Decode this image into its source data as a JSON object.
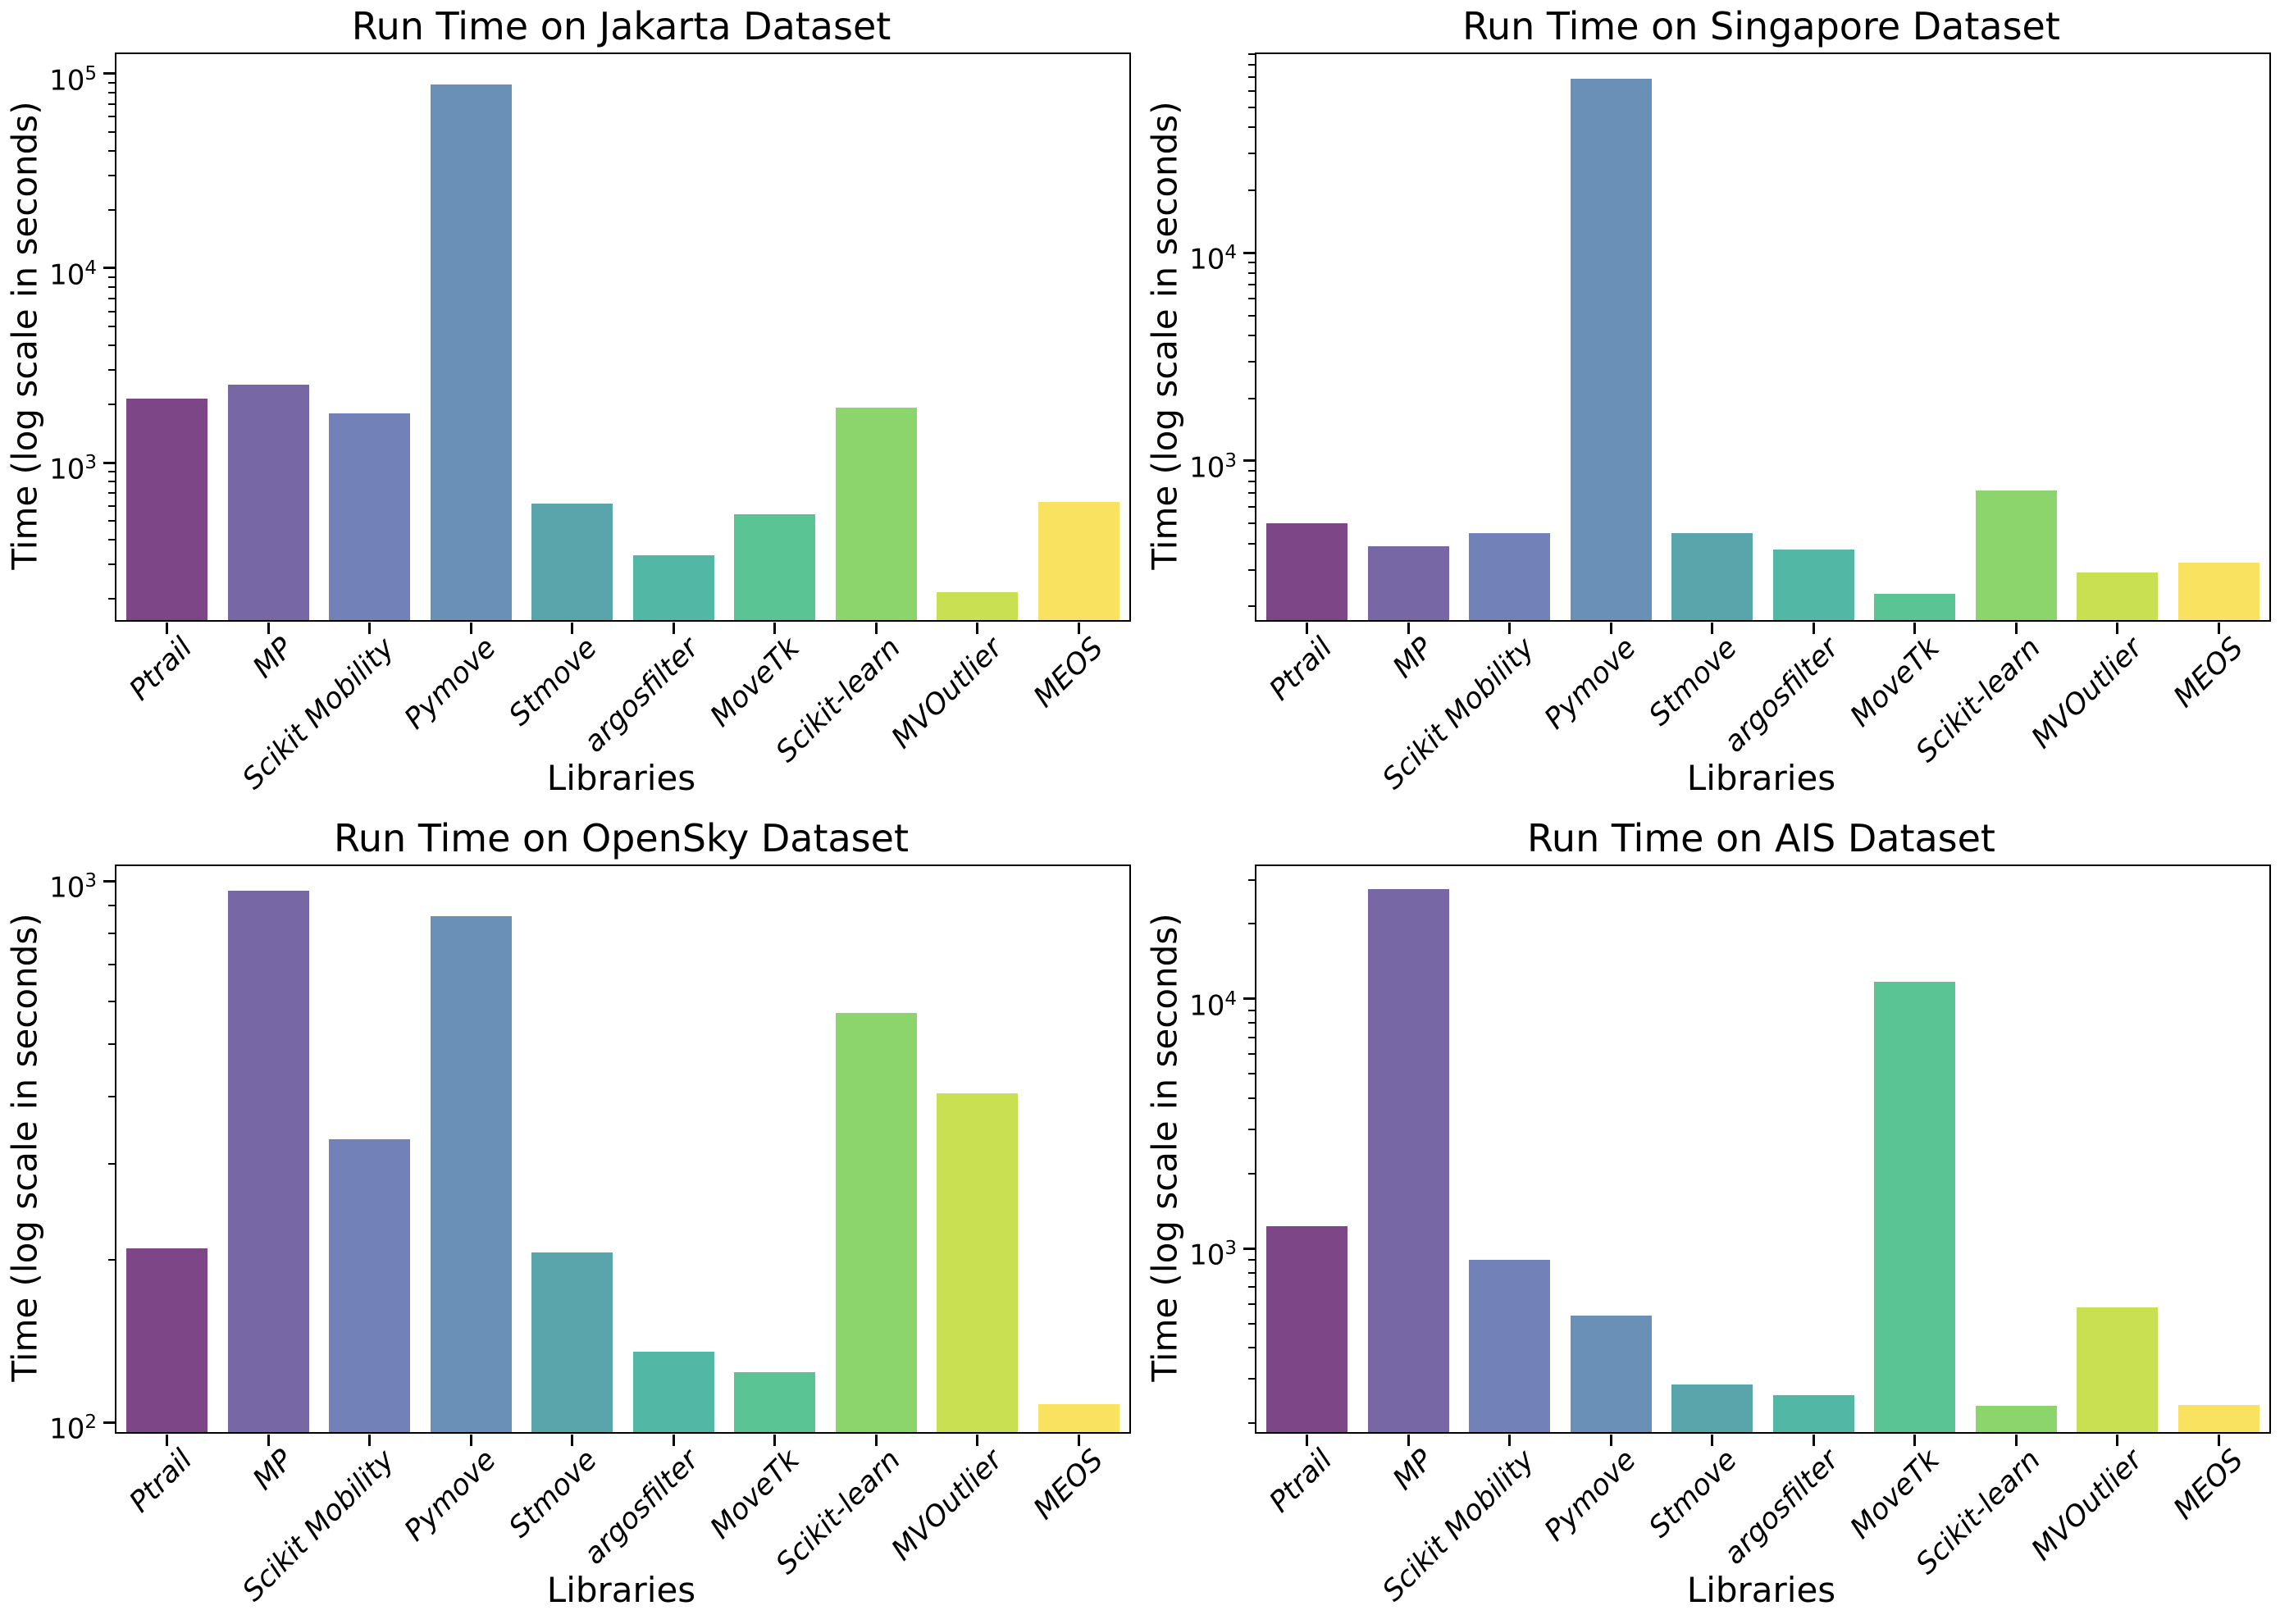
{
  "chart_data": [
    {
      "type": "bar",
      "title": "Run Time on Jakarta Dataset",
      "xlabel": "Libraries",
      "ylabel": "Time (log scale in seconds)",
      "yscale": "log",
      "grid": false,
      "legend": false,
      "categories": [
        "Ptrail",
        "MP",
        "Scikit Mobility",
        "Pymove",
        "Stmove",
        "argosfilter",
        "MoveTk",
        "Scikit-learn",
        "MVOutlier",
        "MEOS"
      ],
      "values": [
        2140,
        2520,
        1790,
        88000,
        615,
        335,
        540,
        1920,
        215,
        625
      ],
      "ylim": [
        155,
        126000
      ],
      "ytick_exponents": [
        3,
        4,
        5
      ]
    },
    {
      "type": "bar",
      "title": "Run Time on Singapore Dataset",
      "xlabel": "Libraries",
      "ylabel": "Time (log scale in seconds)",
      "yscale": "log",
      "grid": false,
      "legend": false,
      "categories": [
        "Ptrail",
        "MP",
        "Scikit Mobility",
        "Pymove",
        "Stmove",
        "argosfilter",
        "MoveTk",
        "Scikit-learn",
        "MVOutlier",
        "MEOS"
      ],
      "values": [
        500,
        388,
        450,
        68500,
        450,
        375,
        230,
        720,
        290,
        325
      ],
      "ylim": [
        172,
        90000
      ],
      "ytick_exponents": [
        3,
        4
      ]
    },
    {
      "type": "bar",
      "title": "Run Time on OpenSky Dataset",
      "xlabel": "Libraries",
      "ylabel": "Time (log scale in seconds)",
      "yscale": "log",
      "grid": false,
      "legend": false,
      "categories": [
        "Ptrail",
        "MP",
        "Scikit Mobility",
        "Pymove",
        "Stmove",
        "argosfilter",
        "MoveTk",
        "Scikit-learn",
        "MVOutlier",
        "MEOS"
      ],
      "values": [
        210,
        958,
        334,
        860,
        206,
        135,
        124,
        570,
        406,
        108
      ],
      "ylim": [
        96,
        1065
      ],
      "ytick_exponents": [
        2,
        3
      ]
    },
    {
      "type": "bar",
      "title": "Run Time on AIS Dataset",
      "xlabel": "Libraries",
      "ylabel": "Time (log scale in seconds)",
      "yscale": "log",
      "grid": false,
      "legend": false,
      "categories": [
        "Ptrail",
        "MP",
        "Scikit Mobility",
        "Pymove",
        "Stmove",
        "argosfilter",
        "MoveTk",
        "Scikit-learn",
        "MVOutlier",
        "MEOS"
      ],
      "values": [
        1230,
        27500,
        900,
        540,
        285,
        258,
        11700,
        235,
        580,
        236
      ],
      "ylim": [
        184,
        34000
      ],
      "ytick_exponents": [
        3,
        4
      ]
    }
  ],
  "style": {
    "background": "#ffffff",
    "axis_color": "#000000",
    "text_color": "#000000",
    "bar_colors": [
      "#7d4687",
      "#7867a5",
      "#7282b8",
      "#6a90b8",
      "#5aa5ab",
      "#52b7a4",
      "#5ac494",
      "#8cd56c",
      "#c9e052",
      "#f8e25f"
    ]
  }
}
